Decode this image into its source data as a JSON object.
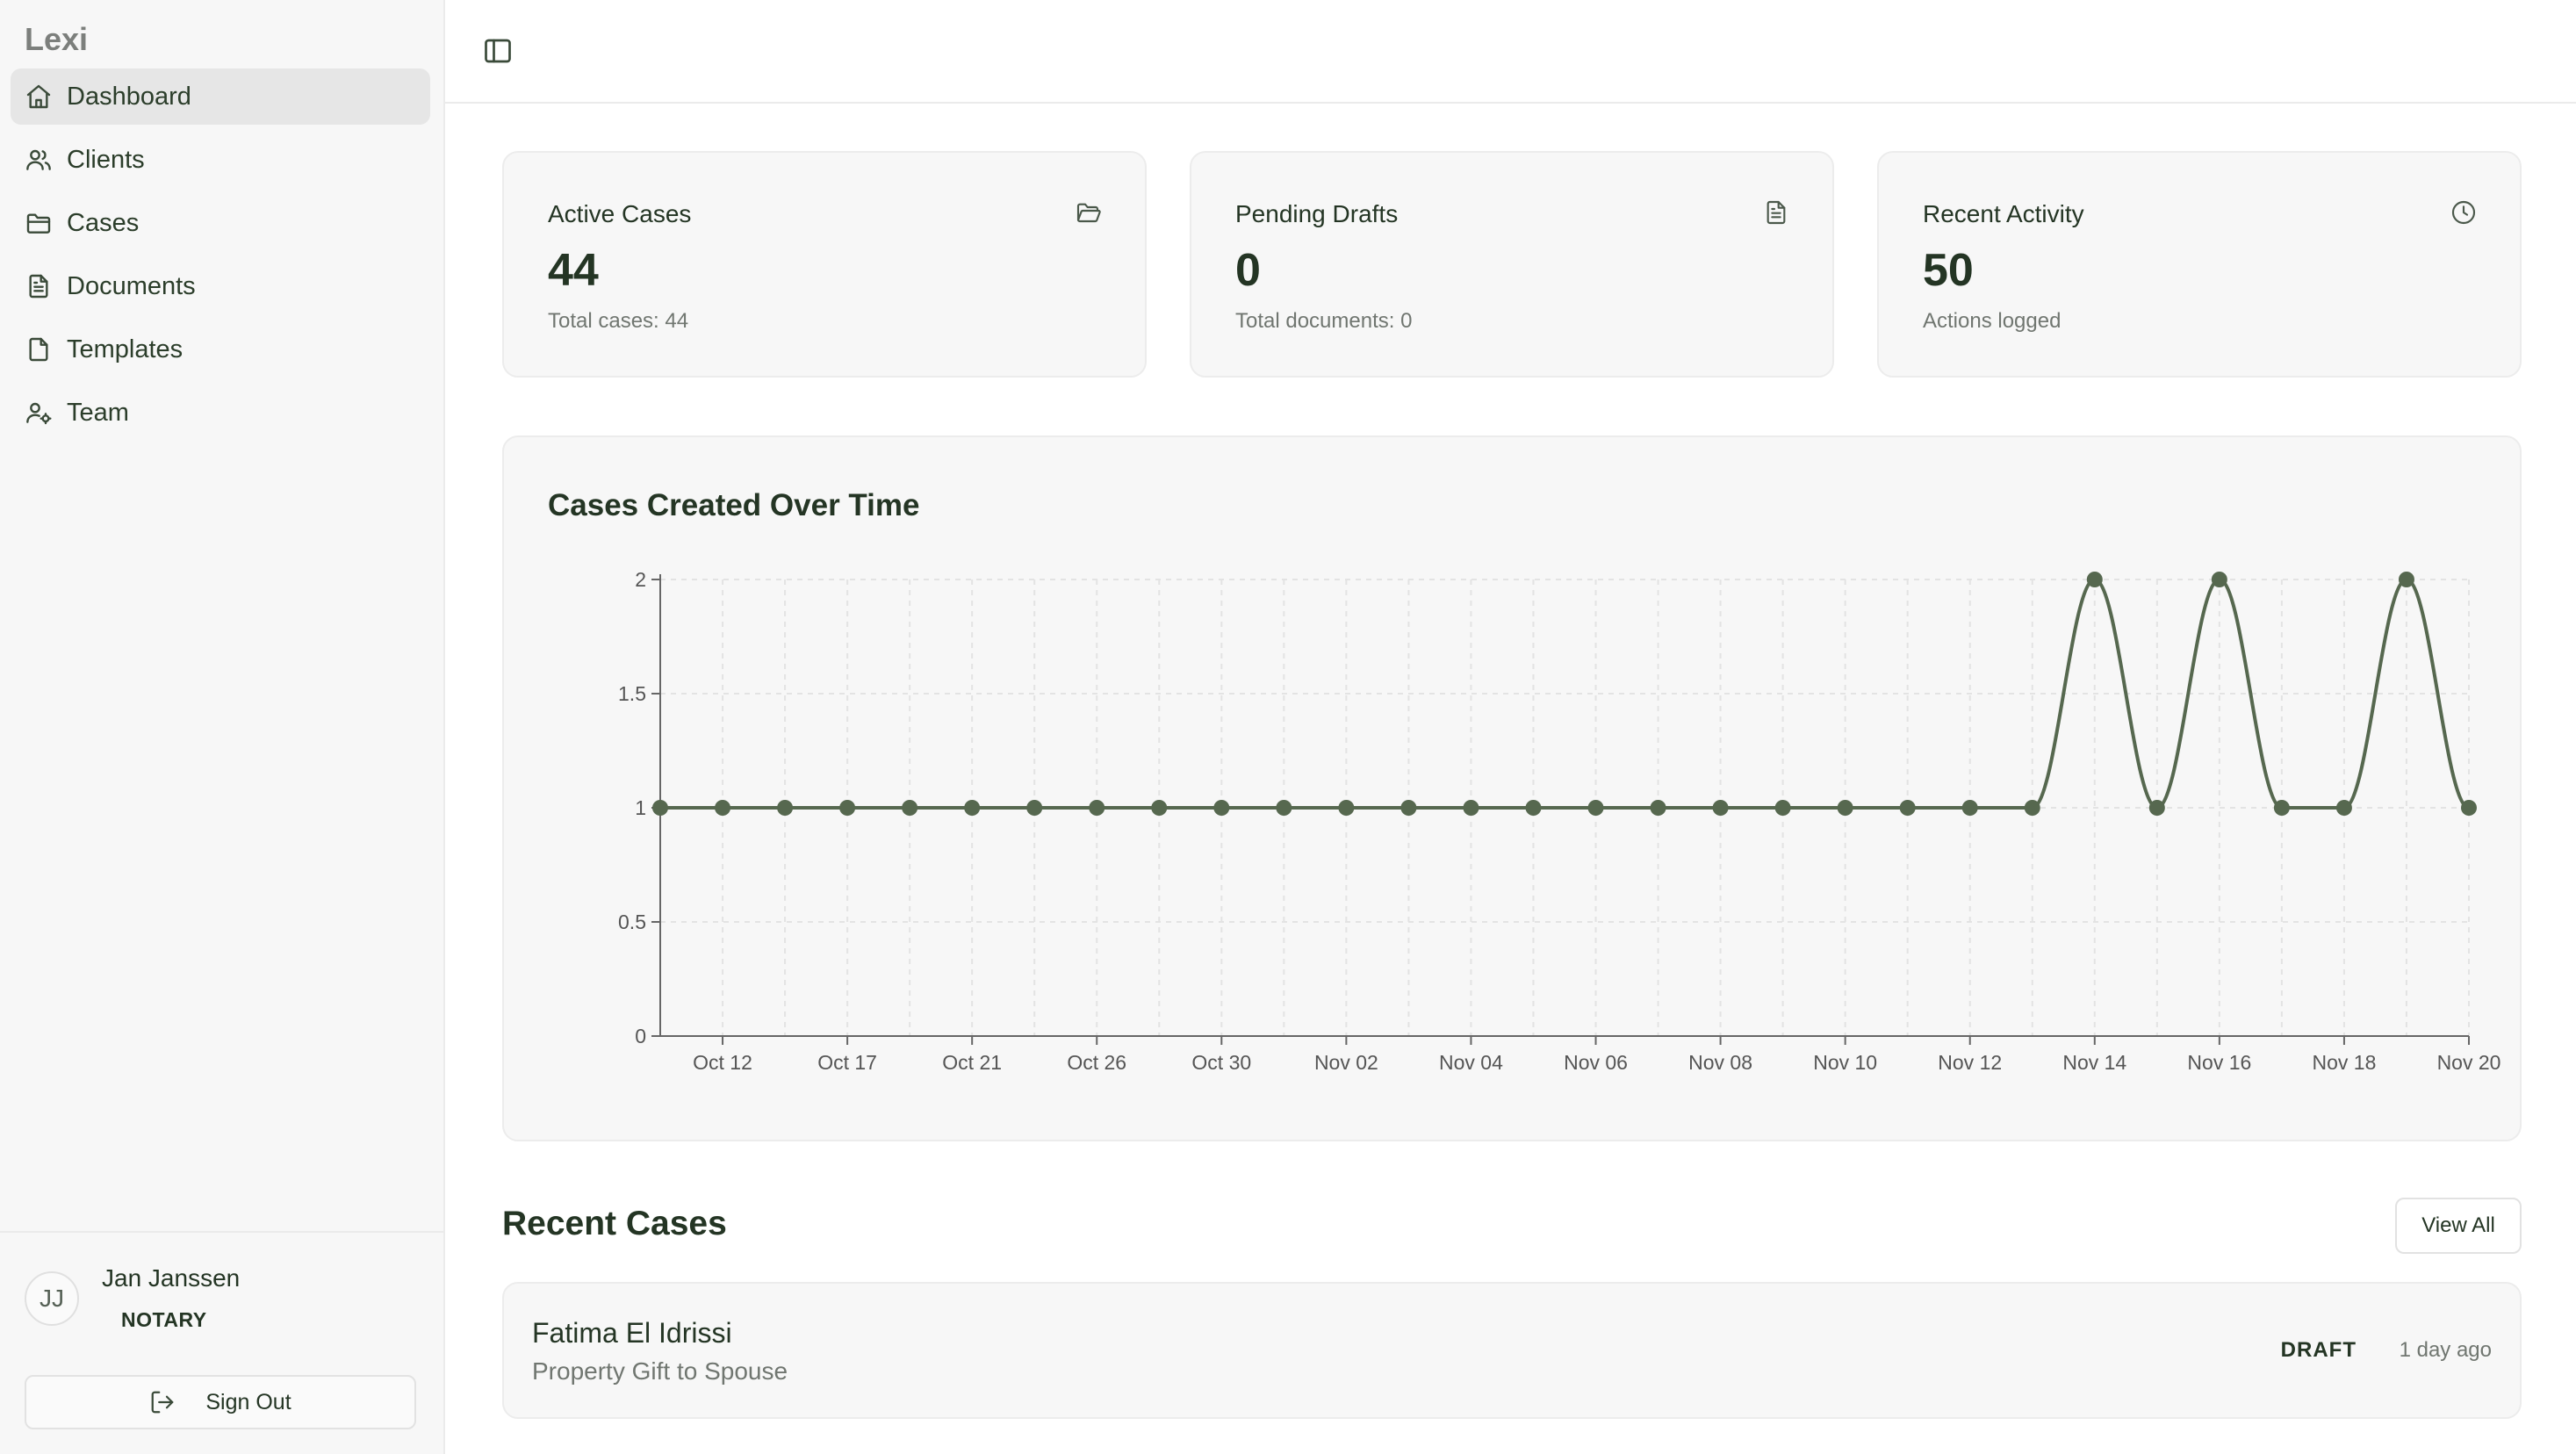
{
  "app": {
    "name": "Lexi"
  },
  "sidebar": {
    "items": [
      {
        "label": "Dashboard",
        "icon": "home-icon",
        "active": true
      },
      {
        "label": "Clients",
        "icon": "users-icon"
      },
      {
        "label": "Cases",
        "icon": "folder-icon"
      },
      {
        "label": "Documents",
        "icon": "document-icon"
      },
      {
        "label": "Templates",
        "icon": "file-icon"
      },
      {
        "label": "Team",
        "icon": "user-cog-icon"
      }
    ]
  },
  "user": {
    "initials": "JJ",
    "name": "Jan Janssen",
    "role": "NOTARY",
    "sign_out_label": "Sign Out"
  },
  "stats": [
    {
      "label": "Active Cases",
      "value": "44",
      "sub": "Total cases: 44",
      "icon": "folder-open-icon"
    },
    {
      "label": "Pending Drafts",
      "value": "0",
      "sub": "Total documents: 0",
      "icon": "document-icon"
    },
    {
      "label": "Recent Activity",
      "value": "50",
      "sub": "Actions logged",
      "icon": "clock-icon"
    }
  ],
  "chart_data": {
    "type": "line",
    "title": "Cases Created Over Time",
    "xlabel": "",
    "ylabel": "",
    "ylim": [
      0,
      2
    ],
    "yticks": [
      "0",
      "0.5",
      "1",
      "1.5",
      "2"
    ],
    "xtick_labels": [
      "Oct 12",
      "Oct 17",
      "Oct 21",
      "Oct 26",
      "Oct 30",
      "Nov 02",
      "Nov 04",
      "Nov 06",
      "Nov 08",
      "Nov 10",
      "Nov 12",
      "Nov 14",
      "Nov 16",
      "Nov 18",
      "Nov 20"
    ],
    "values": [
      1,
      1,
      1,
      1,
      1,
      1,
      1,
      1,
      1,
      1,
      1,
      1,
      1,
      1,
      1,
      1,
      1,
      1,
      1,
      1,
      1,
      1,
      1,
      2,
      1,
      2,
      1,
      1,
      2,
      1
    ],
    "grid": true,
    "color": "#56684f"
  },
  "recent_cases": {
    "title": "Recent Cases",
    "view_all_label": "View All",
    "items": [
      {
        "client": "Fatima El Idrissi",
        "type": "Property Gift to Spouse",
        "status": "DRAFT",
        "time": "1 day ago"
      }
    ]
  }
}
